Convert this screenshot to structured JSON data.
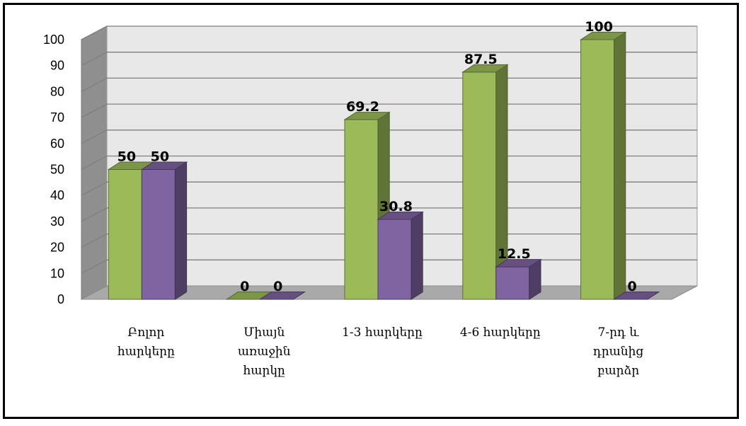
{
  "chart_data": {
    "type": "bar",
    "title": "",
    "xlabel": "",
    "ylabel": "",
    "ylim": [
      0,
      100
    ],
    "yticks": [
      0,
      10,
      20,
      30,
      40,
      50,
      60,
      70,
      80,
      90,
      100
    ],
    "categories": [
      [
        "Բոլոր",
        "հարկերը"
      ],
      [
        "Միայն",
        "առաջին",
        "հարկը"
      ],
      [
        "1-3 հարկերը"
      ],
      [
        "4-6 հարկերը"
      ],
      [
        "7-րդ և",
        "դրանից",
        "բարձր"
      ]
    ],
    "series": [
      {
        "values": [
          50,
          0,
          69.2,
          87.5,
          100
        ],
        "labels": [
          "50",
          "0",
          "69.2",
          "87.5",
          "100"
        ],
        "color": "#9BBB59"
      },
      {
        "values": [
          50,
          0,
          30.8,
          12.5,
          0
        ],
        "labels": [
          "50",
          "0",
          "30.8",
          "12.5",
          "0"
        ],
        "color": "#8064A2"
      }
    ],
    "grid": true,
    "legend": "none",
    "style": "3d-clustered-column"
  }
}
